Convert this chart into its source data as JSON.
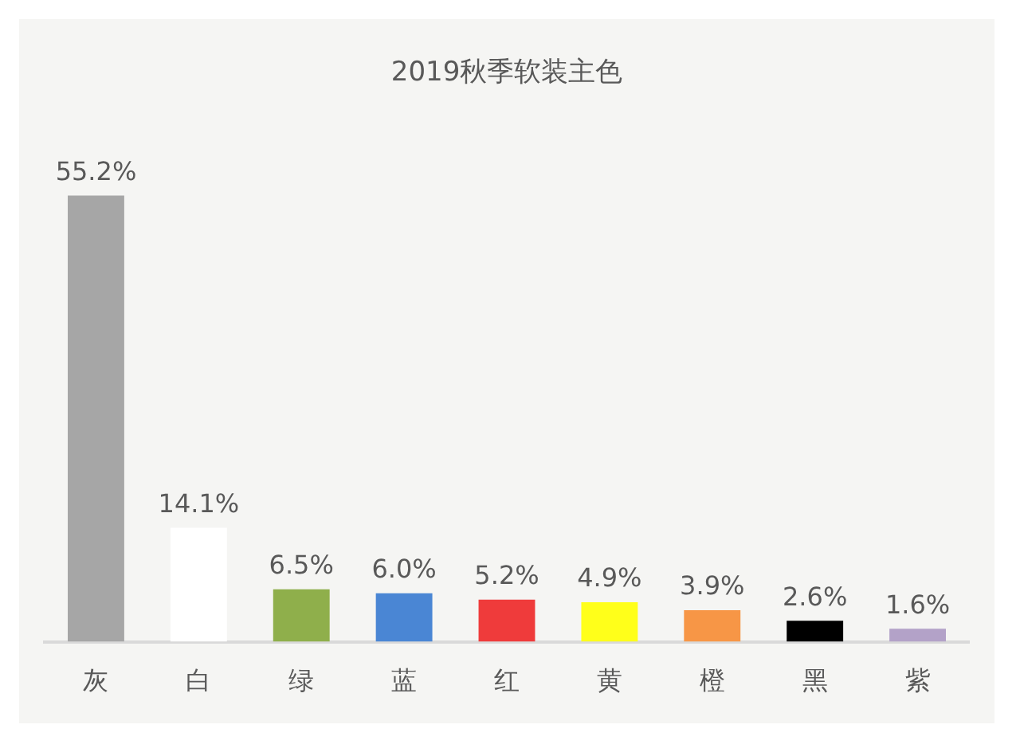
{
  "chart_data": {
    "type": "bar",
    "title": "2019秋季软装主色",
    "categories": [
      "灰",
      "白",
      "绿",
      "蓝",
      "红",
      "黄",
      "橙",
      "黑",
      "紫"
    ],
    "values": [
      55.2,
      14.1,
      6.5,
      6.0,
      5.2,
      4.9,
      3.9,
      2.6,
      1.6
    ],
    "value_labels": [
      "55.2%",
      "14.1%",
      "6.5%",
      "6.0%",
      "5.2%",
      "4.9%",
      "3.9%",
      "2.6%",
      "1.6%"
    ],
    "colors": [
      "#a6a6a6",
      "#ffffff",
      "#8faf4b",
      "#4a86d4",
      "#ef3b3b",
      "#ffff1a",
      "#f79646",
      "#000000",
      "#b3a2c8"
    ],
    "legend": false
  }
}
